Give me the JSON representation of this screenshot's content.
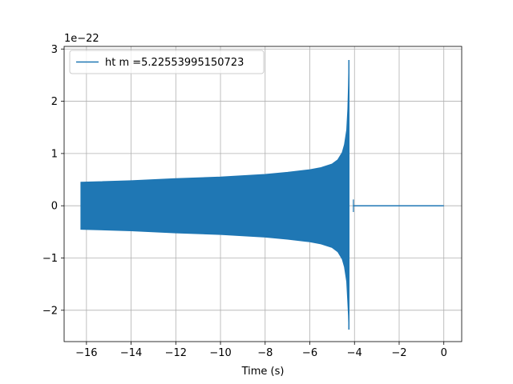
{
  "chart_data": {
    "type": "line",
    "xlabel": "Time (s)",
    "ylabel": "",
    "y_offset_label": "1e−22",
    "xlim": [
      -17.0,
      0.8
    ],
    "ylim": [
      -2.6,
      3.05
    ],
    "x_ticks": [
      -16,
      -14,
      -12,
      -10,
      -8,
      -6,
      -4,
      -2,
      0
    ],
    "x_tick_labels": [
      "−16",
      "−14",
      "−12",
      "−10",
      "−8",
      "−6",
      "−4",
      "−2",
      "0"
    ],
    "y_ticks": [
      -2,
      -1,
      0,
      1,
      2,
      3
    ],
    "y_tick_labels": [
      "−2",
      "−1",
      "0",
      "1",
      "2",
      "3"
    ],
    "grid": true,
    "legend_position": "upper-left",
    "series": [
      {
        "name": "ht m =5.22553995150723",
        "color": "#1f77b4",
        "envelope_upper": {
          "x": [
            -16.25,
            -14,
            -12,
            -10,
            -8,
            -7,
            -6,
            -5.5,
            -5,
            -4.75,
            -4.55,
            -4.45,
            -4.35,
            -4.3,
            -4.27,
            -4.25
          ],
          "y": [
            0.45,
            0.48,
            0.52,
            0.55,
            0.6,
            0.64,
            0.69,
            0.73,
            0.8,
            0.88,
            1.02,
            1.17,
            1.45,
            1.85,
            2.3,
            2.79
          ]
        },
        "envelope_lower": {
          "x": [
            -16.25,
            -14,
            -12,
            -10,
            -8,
            -7,
            -6,
            -5.5,
            -5,
            -4.75,
            -4.55,
            -4.45,
            -4.35,
            -4.3,
            -4.27,
            -4.25
          ],
          "y": [
            -0.45,
            -0.48,
            -0.52,
            -0.55,
            -0.6,
            -0.64,
            -0.69,
            -0.73,
            -0.8,
            -0.88,
            -1.02,
            -1.17,
            -1.45,
            -1.85,
            -2.1,
            -2.37
          ]
        },
        "ringdown_end_x": -4.05,
        "flat": {
          "x": [
            -4.05,
            0.0
          ],
          "y": 0.0
        }
      }
    ]
  }
}
